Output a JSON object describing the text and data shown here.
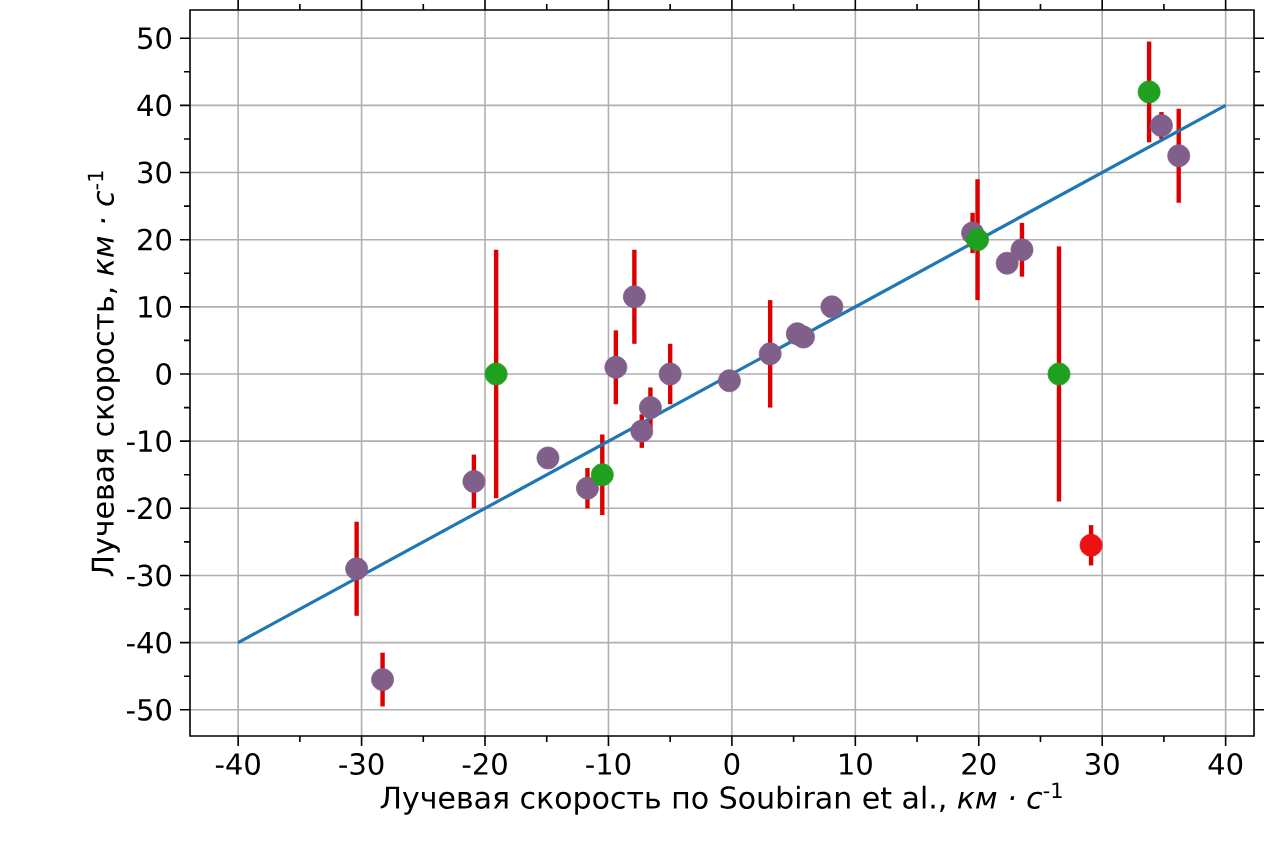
{
  "chart_data": {
    "type": "scatter",
    "xlabel": "Лучевая скорость по Soubiran et al., *км · с*$^{-1}$",
    "ylabel": "Лучевая скорость, *км · с*$^{-1}$",
    "xlim": [
      -43.9,
      42.3
    ],
    "ylim": [
      -53.9,
      54.2
    ],
    "xticks": [
      -40,
      -30,
      -20,
      -10,
      0,
      10,
      20,
      30,
      40
    ],
    "yticks": [
      -50,
      -40,
      -30,
      -20,
      -10,
      0,
      10,
      20,
      30,
      40,
      50
    ],
    "grid": true,
    "series": [
      {
        "marker": "circle",
        "x": [
          -30.4,
          -28.3,
          -20.9,
          -19.1,
          -14.9,
          -11.7,
          -10.5,
          -9.4,
          -7.9,
          -7.3,
          -6.6,
          -5.0,
          -0.2,
          3.1,
          5.3,
          5.8,
          8.1,
          19.5,
          19.9,
          22.3,
          23.5,
          26.5,
          29.1,
          33.8,
          34.8,
          36.2
        ],
        "values": [
          -29,
          -45.5,
          -16,
          0,
          -12.5,
          -17,
          -15,
          1,
          11.5,
          -8.5,
          -5,
          0,
          -1,
          3,
          6,
          5.5,
          10,
          21,
          20,
          16.5,
          18.5,
          0,
          -25.5,
          42,
          37,
          32.5
        ],
        "errors": [
          7,
          4,
          4,
          18.5,
          null,
          3,
          6,
          5.5,
          7,
          2.5,
          3,
          4.5,
          null,
          8,
          null,
          null,
          null,
          3,
          9,
          null,
          4,
          19,
          3,
          7.5,
          2,
          7
        ],
        "colors": [
          "#80608a",
          "#80608a",
          "#80608a",
          "#1fa01f",
          "#80608a",
          "#80608a",
          "#1fa01f",
          "#80608a",
          "#80608a",
          "#80608a",
          "#80608a",
          "#80608a",
          "#80608a",
          "#80608a",
          "#80608a",
          "#80608a",
          "#80608a",
          "#80608a",
          "#1fa01f",
          "#80608a",
          "#80608a",
          "#1fa01f",
          "#ee1111",
          "#1fa01f",
          "#80608a",
          "#80608a"
        ]
      },
      {
        "type": "line",
        "marker": "none",
        "color": "#1f77b4",
        "x": [
          -40,
          40
        ],
        "values": [
          -40,
          40
        ]
      }
    ]
  }
}
